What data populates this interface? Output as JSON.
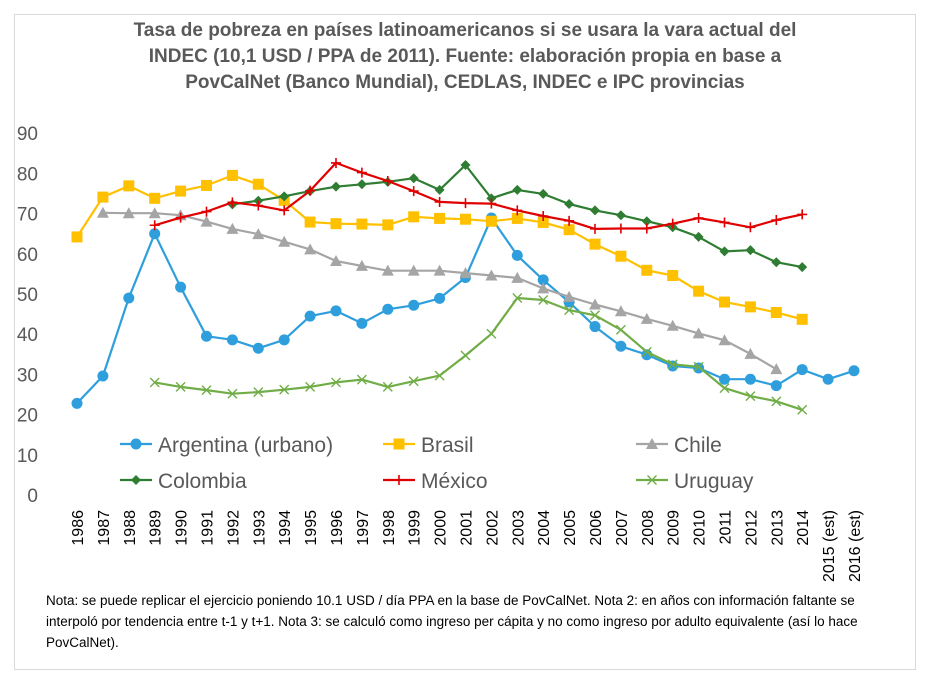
{
  "chart_data": {
    "type": "line",
    "title_lines": [
      "Tasa de pobreza en países latinoamericanos si se usara la vara actual del",
      "INDEC (10,1 USD / PPA de 2011). Fuente: elaboración propia en base a",
      "PovCalNet (Banco Mundial), CEDLAS, INDEC e IPC provincias"
    ],
    "categories": [
      "1986",
      "1987",
      "1988",
      "1989",
      "1990",
      "1991",
      "1992",
      "1993",
      "1994",
      "1995",
      "1996",
      "1997",
      "1998",
      "1999",
      "2000",
      "2001",
      "2002",
      "2003",
      "2004",
      "2005",
      "2006",
      "2007",
      "2008",
      "2009",
      "2010",
      "2011",
      "2012",
      "2013",
      "2014",
      "2015 (est)",
      "2016 (est)"
    ],
    "ylim": [
      0,
      90
    ],
    "yticks": [
      "0",
      "10",
      "20",
      "30",
      "40",
      "50",
      "60",
      "70",
      "80",
      "90"
    ],
    "legend_position": "inside-bottom",
    "grid": false,
    "series": [
      {
        "name": "Argentina (urbano)",
        "color": "#2e9fdc",
        "marker": "circle",
        "values": [
          22.8,
          29.6,
          49,
          65,
          51.7,
          39.5,
          38.6,
          36.5,
          38.6,
          44.5,
          45.8,
          42.7,
          46.2,
          47.2,
          48.9,
          54.1,
          68.9,
          59.6,
          53.5,
          48,
          41.9,
          37,
          34.9,
          32.1,
          31.6,
          28.8,
          28.8,
          27.2,
          31.2,
          28.8,
          30.9
        ]
      },
      {
        "name": "Brasil",
        "color": "#ffc000",
        "marker": "square",
        "values": [
          64.2,
          74.1,
          76.9,
          73.8,
          75.6,
          77,
          79.5,
          77.3,
          73.3,
          67.9,
          67.5,
          67.4,
          67.2,
          69.2,
          68.8,
          68.6,
          68.1,
          68.8,
          67.8,
          66,
          62.4,
          59.4,
          55.9,
          54.6,
          50.7,
          48,
          46.8,
          45.4,
          43.7,
          null,
          null
        ]
      },
      {
        "name": "Chile",
        "color": "#a5a5a5",
        "marker": "triangle",
        "values": [
          null,
          70.2,
          70.1,
          70.1,
          69.6,
          68,
          66.2,
          64.9,
          63,
          61.1,
          58.2,
          57,
          55.8,
          55.8,
          55.8,
          55.2,
          54.6,
          54,
          51.4,
          49.3,
          47.4,
          45.7,
          43.8,
          42.1,
          40.2,
          38.5,
          35.1,
          31.3,
          null,
          null,
          null
        ]
      },
      {
        "name": "Colombia",
        "color": "#2e7d32",
        "marker": "diamond",
        "values": [
          null,
          null,
          null,
          null,
          null,
          null,
          72.3,
          73.2,
          74.3,
          75.6,
          76.7,
          77.3,
          77.9,
          78.8,
          75.9,
          82.1,
          73.8,
          75.9,
          74.9,
          72.4,
          70.8,
          69.6,
          68.1,
          66.6,
          64.2,
          60.6,
          60.9,
          57.9,
          56.7,
          null,
          null
        ]
      },
      {
        "name": "México",
        "color": "#e00000",
        "marker": "plus",
        "values": [
          null,
          null,
          null,
          67.1,
          69,
          70.5,
          72.8,
          72,
          70.8,
          75.7,
          82.6,
          80.2,
          78.1,
          75.6,
          72.9,
          72.6,
          72.5,
          70.8,
          69.4,
          68.2,
          66.2,
          66.3,
          66.3,
          67.5,
          68.9,
          67.8,
          66.6,
          68.4,
          69.8,
          null,
          null
        ]
      },
      {
        "name": "Uruguay",
        "color": "#70ad47",
        "marker": "x",
        "values": [
          null,
          null,
          null,
          28,
          26.9,
          26.1,
          25.2,
          25.6,
          26.2,
          26.9,
          28,
          28.7,
          26.9,
          28.3,
          29.7,
          34.7,
          40.1,
          49,
          48.5,
          46,
          44.7,
          41.1,
          35.6,
          32.5,
          31.9,
          26.6,
          24.6,
          23.3,
          21.2,
          null,
          null
        ]
      }
    ]
  },
  "note": "Nota: se puede replicar el ejercicio poniendo 10.1 USD / día PPA en la base de PovCalNet. Nota 2: en años con información faltante se interpoló por tendencia entre t-1 y t+1. Nota 3: se calculó como ingreso per cápita y no como ingreso por adulto equivalente (así lo hace PovCalNet)."
}
